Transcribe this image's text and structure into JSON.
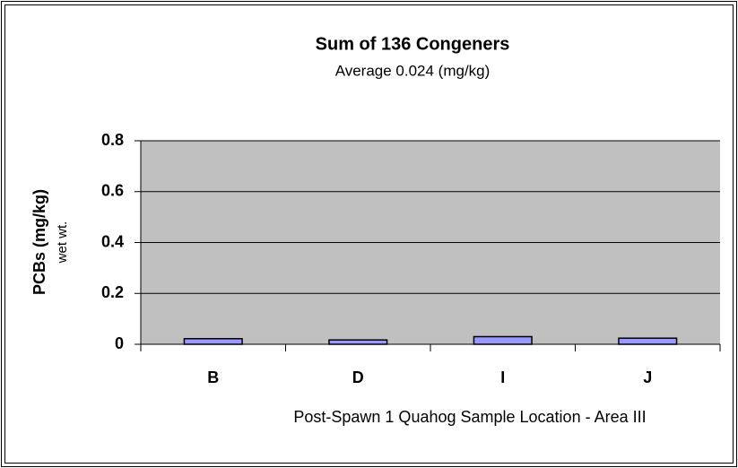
{
  "chart_data": {
    "type": "bar",
    "title": "Sum of 136 Congeners",
    "subtitle": "Average 0.024 (mg/kg)",
    "y_label": [
      "PCBs (mg/kg)",
      "wet wt."
    ],
    "x_label": "Post-Spawn 1 Quahog Sample Location - Area III",
    "categories": [
      "B",
      "D",
      "I",
      "J"
    ],
    "values": [
      0.022,
      0.017,
      0.03,
      0.024
    ],
    "color": "#9999ff",
    "ylim": [
      0,
      0.8
    ],
    "yticks": [
      0,
      0.2,
      0.4,
      0.6,
      0.8
    ],
    "grid": true
  }
}
